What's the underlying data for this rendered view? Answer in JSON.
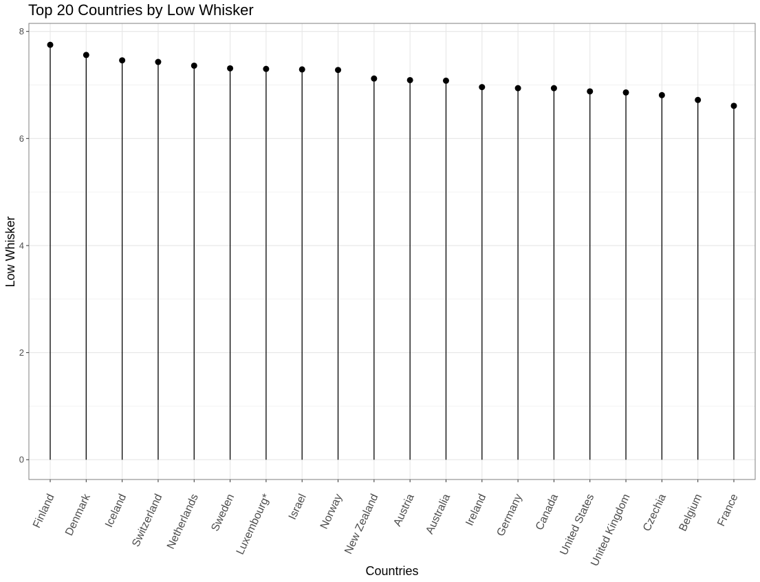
{
  "chart_data": {
    "type": "scatter",
    "subtype": "lollipop",
    "title": "Top 20 Countries by Low Whisker",
    "xlabel": "Countries",
    "ylabel": "Low Whisker",
    "ylim": [
      -0.37,
      8.15
    ],
    "yticks": [
      0,
      2,
      4,
      6,
      8
    ],
    "grid": true,
    "categories": [
      "Finland",
      "Denmark",
      "Iceland",
      "Switzerland",
      "Netherlands",
      "Sweden",
      "Luxembourg*",
      "Israel",
      "Norway",
      "New Zealand",
      "Austria",
      "Australia",
      "Ireland",
      "Germany",
      "Canada",
      "United States",
      "United Kingdom",
      "Czechia",
      "Belgium",
      "France"
    ],
    "values": [
      7.75,
      7.56,
      7.46,
      7.43,
      7.36,
      7.31,
      7.3,
      7.29,
      7.28,
      7.12,
      7.09,
      7.08,
      6.96,
      6.94,
      6.94,
      6.88,
      6.86,
      6.81,
      6.72,
      6.61
    ],
    "colors": {
      "point": "#000000",
      "stem": "#000000",
      "panel_border": "#7f7f7f",
      "grid_major": "#e6e6e6",
      "grid_minor": "#f2f2f2"
    }
  }
}
